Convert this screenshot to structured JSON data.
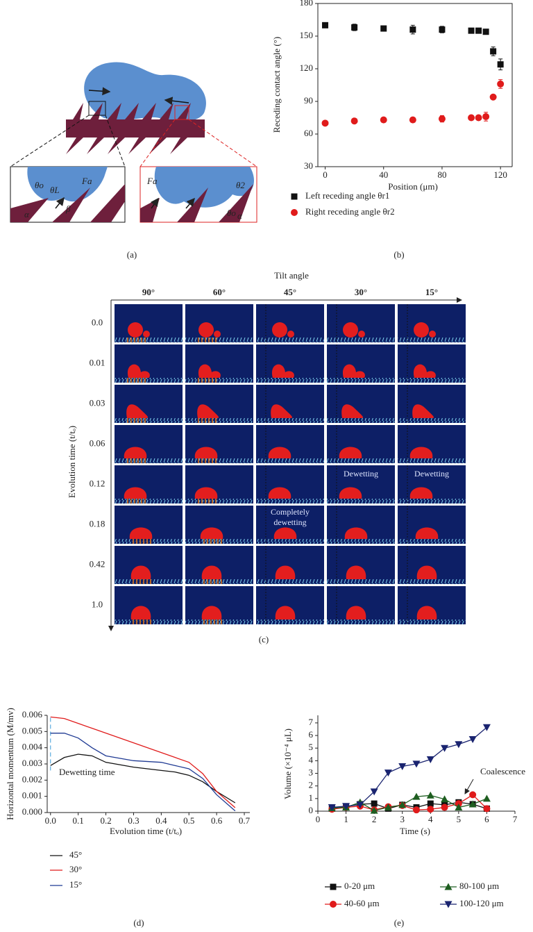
{
  "panel_labels": [
    "(a)",
    "(b)",
    "(c)",
    "(d)",
    "(e)"
  ],
  "panel_a": {
    "labels": [
      "θo",
      "θL",
      "Fa",
      "β",
      "α",
      "Fa",
      "θ2",
      "θo",
      "α"
    ]
  },
  "panel_c": {
    "title": "Tilt angle",
    "columns": [
      "90°",
      "60°",
      "45°",
      "30°",
      "15°"
    ],
    "rows": [
      "0.0",
      "0.01",
      "0.03",
      "0.06",
      "0.12",
      "0.18",
      "0.42",
      "1.0"
    ],
    "ylabel": "Evolution time (t/tₒ)",
    "annotations": [
      "Dewetting",
      "Dewetting",
      "Completely",
      "dewetting"
    ]
  },
  "chart_data": [
    {
      "type": "scatter",
      "xlabel": "Position (μm)",
      "ylabel": "Receding contact angle (°)",
      "xlim": [
        -5,
        128
      ],
      "xticks": [
        0,
        40,
        80,
        120
      ],
      "ylim": [
        30,
        180
      ],
      "yticks": [
        30,
        60,
        90,
        120,
        150,
        180
      ],
      "series": [
        {
          "name": "Left receding angle θr1",
          "color": "#111111",
          "marker": "square",
          "x": [
            0,
            20,
            40,
            60,
            80,
            100,
            105,
            110,
            115,
            120
          ],
          "values": [
            160,
            158,
            157,
            156,
            156,
            155,
            155,
            154,
            136,
            124
          ],
          "errors": [
            2,
            3,
            1,
            4,
            3,
            1,
            1,
            1,
            4,
            5
          ]
        },
        {
          "name": "Right receding angle θr2",
          "color": "#e01b1b",
          "marker": "circle",
          "x": [
            0,
            20,
            40,
            60,
            80,
            100,
            105,
            110,
            115,
            120
          ],
          "values": [
            70,
            72,
            73,
            73,
            74,
            75,
            75,
            76,
            94,
            106
          ],
          "errors": [
            1,
            1,
            1,
            1,
            3,
            1,
            1,
            4,
            1,
            4
          ]
        }
      ]
    },
    {
      "type": "line",
      "xlabel": "Evolution time (t/tₒ)",
      "ylabel": "Horizontal momentum (M/mv)",
      "annotation": "Dewetting time",
      "xlim": [
        -0.012,
        0.72
      ],
      "xticks": [
        {
          "value": 0,
          "label": "0.0"
        },
        0.1,
        0.2,
        0.3,
        0.4,
        0.5,
        0.6,
        0.7
      ],
      "ylim": [
        0,
        0.006
      ],
      "yticks": [
        {
          "value": 0,
          "label": "0.000"
        },
        0.001,
        0.002,
        0.003,
        0.004,
        0.005,
        0.006
      ],
      "x": [
        0,
        0.05,
        0.1,
        0.15,
        0.2,
        0.3,
        0.4,
        0.45,
        0.5,
        0.55,
        0.6,
        0.667
      ],
      "series": [
        {
          "name": "45°",
          "color": "#111111",
          "values": [
            0.0029,
            0.0034,
            0.0036,
            0.0035,
            0.0031,
            0.0028,
            0.0026,
            0.0025,
            0.0023,
            0.0019,
            0.0013,
            0.0006
          ]
        },
        {
          "name": "30°",
          "color": "#e01b1b",
          "values": [
            0.0059,
            0.0058,
            0.0055,
            0.0052,
            0.0049,
            0.0043,
            0.0037,
            0.0034,
            0.0031,
            0.0024,
            0.0013,
            0.0003
          ]
        },
        {
          "name": "15°",
          "color": "#1f3a93",
          "values": [
            0.0049,
            0.0049,
            0.0046,
            0.004,
            0.0035,
            0.0032,
            0.0031,
            0.0029,
            0.0027,
            0.0021,
            0.0011,
            0.0001
          ]
        }
      ]
    },
    {
      "type": "line",
      "xlabel": "Time (s)",
      "ylabel": "Volume (×10⁻⁴ μL)",
      "annotation": "Coalescence",
      "xlim": [
        0,
        7
      ],
      "xticks": [
        0,
        1,
        2,
        3,
        4,
        5,
        6,
        7
      ],
      "ylim": [
        0,
        7.6
      ],
      "yticks": [
        0,
        1,
        2,
        3,
        4,
        5,
        6,
        7
      ],
      "x": [
        0.5,
        1,
        1.5,
        2,
        2.5,
        3,
        3.5,
        4,
        4.5,
        5,
        5.5,
        6
      ],
      "series": [
        {
          "name": "0-20 μm",
          "color": "#111111",
          "marker": "square",
          "values": [
            0.2,
            0.35,
            0.55,
            0.6,
            0.2,
            0.5,
            0.3,
            0.6,
            0.5,
            0.7,
            0.55,
            0.2
          ]
        },
        {
          "name": "40-60 μm",
          "color": "#e01b1b",
          "marker": "circle",
          "values": [
            0.15,
            0.3,
            0.4,
            0.1,
            0.35,
            0.45,
            0.1,
            0.15,
            0.3,
            0.6,
            1.3,
            0.2
          ]
        },
        {
          "name": "80-100 μm",
          "color": "#1e5e20",
          "marker": "triangle-up",
          "values": [
            0.25,
            0.3,
            0.7,
            0.05,
            0.3,
            0.5,
            1.15,
            1.25,
            0.95,
            0.3,
            0.55,
            1.0
          ]
        },
        {
          "name": "100-120 μm",
          "color": "#1a2470",
          "marker": "triangle-down",
          "values": [
            0.3,
            0.4,
            0.5,
            1.55,
            3.05,
            3.55,
            3.75,
            4.1,
            5.0,
            5.3,
            5.7,
            6.65
          ]
        }
      ]
    }
  ]
}
